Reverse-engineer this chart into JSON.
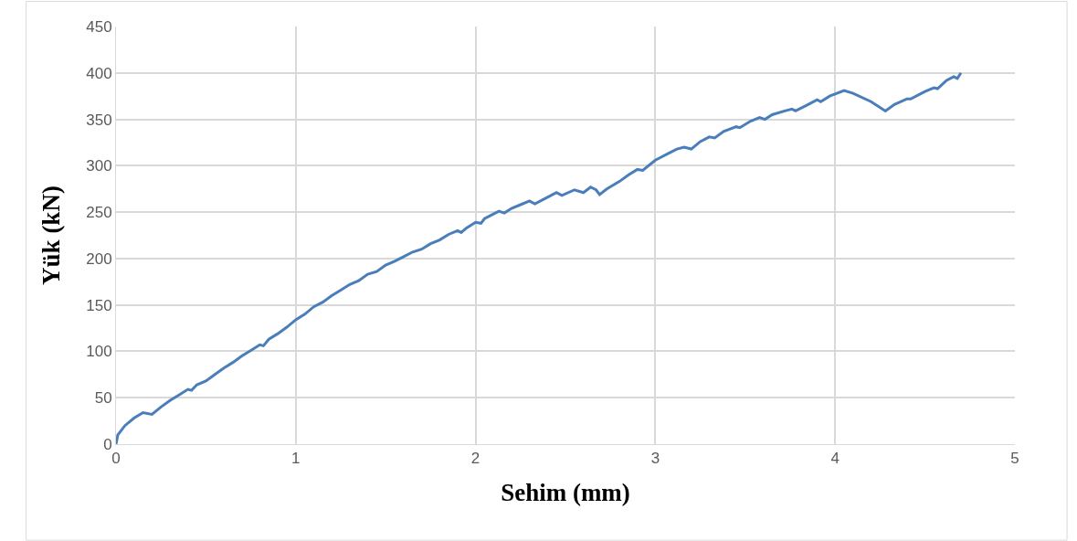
{
  "chart_data": {
    "type": "line",
    "xlabel": "Sehim (mm)",
    "ylabel": "Yük (kN)",
    "xlim": [
      0,
      5
    ],
    "xticks": [
      0,
      1,
      2,
      3,
      4,
      5
    ],
    "ylim": [
      0,
      450
    ],
    "yticks": [
      0,
      50,
      100,
      150,
      200,
      250,
      300,
      350,
      400,
      450
    ],
    "grid": true,
    "marker": "none",
    "line_style": "solid",
    "series": [
      {
        "color": "#4a7ebb",
        "x": [
          0,
          0.01,
          0.05,
          0.1,
          0.15,
          0.2,
          0.25,
          0.3,
          0.35,
          0.4,
          0.42,
          0.45,
          0.5,
          0.55,
          0.6,
          0.65,
          0.7,
          0.75,
          0.8,
          0.82,
          0.85,
          0.9,
          0.95,
          1.0,
          1.05,
          1.1,
          1.15,
          1.2,
          1.25,
          1.3,
          1.35,
          1.4,
          1.45,
          1.5,
          1.55,
          1.6,
          1.65,
          1.7,
          1.75,
          1.8,
          1.85,
          1.9,
          1.92,
          1.95,
          2.0,
          2.03,
          2.05,
          2.1,
          2.13,
          2.16,
          2.2,
          2.25,
          2.3,
          2.33,
          2.4,
          2.45,
          2.48,
          2.55,
          2.6,
          2.64,
          2.67,
          2.69,
          2.73,
          2.8,
          2.85,
          2.9,
          2.93,
          3.0,
          3.02,
          3.07,
          3.12,
          3.16,
          3.2,
          3.25,
          3.3,
          3.33,
          3.38,
          3.45,
          3.47,
          3.53,
          3.58,
          3.61,
          3.65,
          3.72,
          3.76,
          3.78,
          3.85,
          3.9,
          3.92,
          3.97,
          4.05,
          4.1,
          4.2,
          4.28,
          4.33,
          4.4,
          4.42,
          4.5,
          4.55,
          4.57,
          4.62,
          4.66,
          4.68,
          4.7
        ],
        "values": [
          0,
          10,
          20,
          28,
          34,
          32,
          40,
          47,
          53,
          59,
          58,
          64,
          68,
          75,
          82,
          88,
          95,
          101,
          107,
          106,
          113,
          119,
          126,
          134,
          140,
          148,
          153,
          160,
          166,
          172,
          176,
          183,
          186,
          193,
          197,
          202,
          207,
          210,
          216,
          220,
          226,
          230,
          228,
          233,
          239,
          238,
          243,
          248,
          251,
          249,
          254,
          258,
          262,
          259,
          266,
          271,
          268,
          274,
          271,
          277,
          274,
          269,
          275,
          283,
          290,
          296,
          295,
          306,
          308,
          313,
          318,
          320,
          318,
          326,
          331,
          330,
          337,
          342,
          341,
          348,
          352,
          350,
          355,
          359,
          361,
          359,
          366,
          371,
          369,
          375,
          381,
          378,
          369,
          359,
          366,
          372,
          372,
          380,
          384,
          383,
          392,
          396,
          394,
          400
        ]
      }
    ]
  }
}
